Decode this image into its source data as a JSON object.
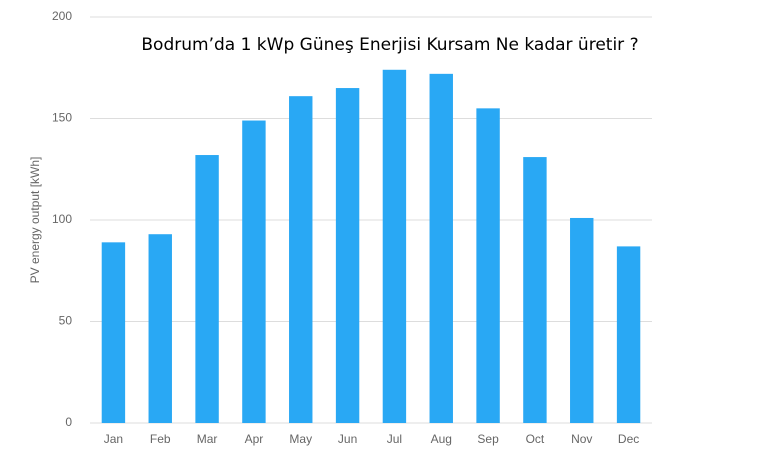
{
  "chart_data": {
    "type": "bar",
    "title": "Bodrum’da 1 kWp Güneş Enerjisi Kursam Ne kadar üretir ?",
    "y_label": "PV energy output [kWh]",
    "categories": [
      "Jan",
      "Feb",
      "Mar",
      "Apr",
      "May",
      "Jun",
      "Jul",
      "Aug",
      "Sep",
      "Oct",
      "Nov",
      "Dec"
    ],
    "values": [
      89,
      93,
      132,
      149,
      161,
      165,
      174,
      172,
      155,
      131,
      101,
      87
    ],
    "color": "#29a8f4",
    "ylim": [
      0,
      200
    ],
    "yticks": [
      0,
      50,
      100,
      150,
      200
    ],
    "grid": true
  }
}
